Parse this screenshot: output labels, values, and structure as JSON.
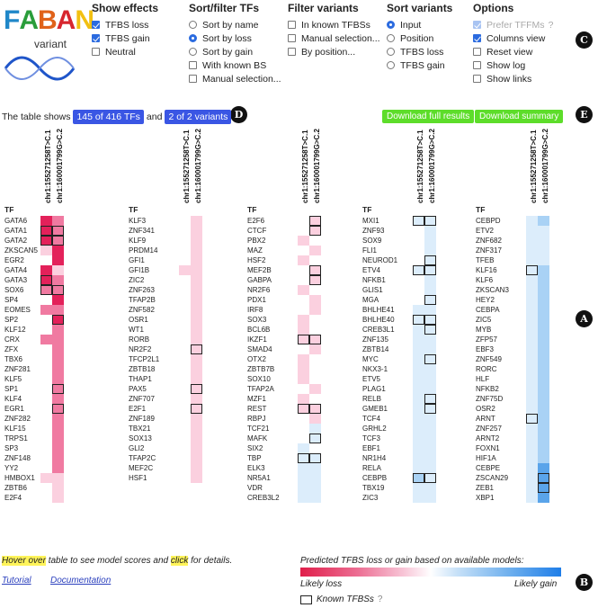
{
  "logo": {
    "letters": [
      {
        "ch": "F",
        "color": "#1f87c8"
      },
      {
        "ch": "A",
        "color": "#2a9d3a"
      },
      {
        "ch": "B",
        "color": "#e0621a"
      },
      {
        "ch": "A",
        "color": "#d7262e"
      },
      {
        "ch": "N",
        "color": "#f2c011"
      }
    ],
    "subtitle": "variant",
    "wave_color": "#1f55c9"
  },
  "options": {
    "show_effects": {
      "header": "Show effects",
      "items": [
        {
          "label": "TFBS loss",
          "checked": true
        },
        {
          "label": "TFBS gain",
          "checked": true
        },
        {
          "label": "Neutral",
          "checked": false
        }
      ]
    },
    "sort_filter": {
      "header": "Sort/filter TFs",
      "radios": [
        {
          "label": "Sort by name",
          "selected": false
        },
        {
          "label": "Sort by loss",
          "selected": true
        },
        {
          "label": "Sort by gain",
          "selected": false
        }
      ],
      "checks": [
        {
          "label": "With known BS",
          "checked": false
        },
        {
          "label": "Manual selection...",
          "checked": false
        }
      ]
    },
    "filter_variants": {
      "header": "Filter variants",
      "items": [
        {
          "label": "In known TFBSs",
          "checked": false
        },
        {
          "label": "Manual selection...",
          "checked": false
        },
        {
          "label": "By position...",
          "checked": false
        }
      ]
    },
    "sort_variants": {
      "header": "Sort variants",
      "items": [
        {
          "label": "Input",
          "selected": true
        },
        {
          "label": "Position",
          "selected": false
        },
        {
          "label": "TFBS loss",
          "selected": false
        },
        {
          "label": "TFBS gain",
          "selected": false
        }
      ]
    },
    "options": {
      "header": "Options",
      "items": [
        {
          "label": "Prefer TFFMs",
          "checked": true,
          "disabled": true,
          "help": "?"
        },
        {
          "label": "Columns view",
          "checked": true,
          "disabled": false
        },
        {
          "label": "Reset view",
          "checked": false,
          "disabled": false
        },
        {
          "label": "Show log",
          "checked": false,
          "disabled": false
        },
        {
          "label": "Show links",
          "checked": false,
          "disabled": false
        }
      ]
    }
  },
  "badges": {
    "a": "A",
    "b": "B",
    "c": "C",
    "d": "D",
    "e": "E"
  },
  "summary": {
    "prefix": "The table shows",
    "tf_count": "145 of 416 TFs",
    "conj": "and",
    "variant_count": "2 of 2 variants"
  },
  "downloads": {
    "full": "Download full results",
    "summary": "Download summary"
  },
  "tf_header": "TF",
  "variant_labels": [
    "chr1:155271258T>C.1",
    "chr1:160001799G>C.2"
  ],
  "tables": [
    {
      "kind": "loss",
      "rows": [
        [
          "GATA6",
          3,
          2,
          0,
          0
        ],
        [
          "GATA1",
          3,
          2,
          1,
          1
        ],
        [
          "GATA2",
          3,
          2,
          1,
          1
        ],
        [
          "ZKSCAN5",
          1,
          3,
          0,
          0
        ],
        [
          "EGR2",
          0,
          3,
          0,
          0
        ],
        [
          "GATA4",
          3,
          1,
          0,
          0
        ],
        [
          "GATA3",
          3,
          2,
          1,
          0
        ],
        [
          "SOX6",
          2,
          2,
          1,
          1
        ],
        [
          "SP4",
          0,
          3,
          0,
          0
        ],
        [
          "EOMES",
          2,
          2,
          0,
          0
        ],
        [
          "SP2",
          0,
          3,
          0,
          1
        ],
        [
          "KLF12",
          0,
          2,
          0,
          0
        ],
        [
          "CRX",
          2,
          2,
          0,
          0
        ],
        [
          "ZFX",
          0,
          2,
          0,
          0
        ],
        [
          "TBX6",
          0,
          2,
          0,
          0
        ],
        [
          "ZNF281",
          0,
          2,
          0,
          0
        ],
        [
          "KLF5",
          0,
          2,
          0,
          0
        ],
        [
          "SP1",
          0,
          2,
          0,
          1
        ],
        [
          "KLF4",
          0,
          2,
          0,
          0
        ],
        [
          "EGR1",
          0,
          2,
          0,
          1
        ],
        [
          "ZNF282",
          0,
          2,
          0,
          0
        ],
        [
          "KLF15",
          0,
          2,
          0,
          0
        ],
        [
          "TRPS1",
          0,
          2,
          0,
          0
        ],
        [
          "SP3",
          0,
          2,
          0,
          0
        ],
        [
          "ZNF148",
          0,
          2,
          0,
          0
        ],
        [
          "YY2",
          0,
          2,
          0,
          0
        ],
        [
          "HMBOX1",
          1,
          1,
          0,
          0
        ],
        [
          "ZBTB6",
          0,
          1,
          0,
          0
        ],
        [
          "E2F4",
          0,
          1,
          0,
          0
        ]
      ]
    },
    {
      "kind": "loss",
      "rows": [
        [
          "KLF3",
          0,
          1,
          0,
          0
        ],
        [
          "ZNF341",
          0,
          1,
          0,
          0
        ],
        [
          "KLF9",
          0,
          1,
          0,
          0
        ],
        [
          "PRDM14",
          0,
          1,
          0,
          0
        ],
        [
          "GFI1",
          0,
          1,
          0,
          0
        ],
        [
          "GFI1B",
          1,
          1,
          0,
          0
        ],
        [
          "ZIC2",
          0,
          1,
          0,
          0
        ],
        [
          "ZNF263",
          0,
          1,
          0,
          0
        ],
        [
          "TFAP2B",
          0,
          1,
          0,
          0
        ],
        [
          "ZNF582",
          0,
          1,
          0,
          0
        ],
        [
          "OSR1",
          0,
          1,
          0,
          0
        ],
        [
          "WT1",
          0,
          1,
          0,
          0
        ],
        [
          "RORB",
          0,
          1,
          0,
          0
        ],
        [
          "NR2F2",
          0,
          1,
          0,
          1
        ],
        [
          "TFCP2L1",
          0,
          1,
          0,
          0
        ],
        [
          "ZBTB18",
          0,
          1,
          0,
          0
        ],
        [
          "THAP1",
          0,
          1,
          0,
          0
        ],
        [
          "PAX5",
          0,
          1,
          0,
          1
        ],
        [
          "ZNF707",
          0,
          1,
          0,
          0
        ],
        [
          "E2F1",
          0,
          1,
          0,
          1
        ],
        [
          "ZNF189",
          0,
          1,
          0,
          0
        ],
        [
          "TBX21",
          0,
          1,
          0,
          0
        ],
        [
          "SOX13",
          0,
          1,
          0,
          0
        ],
        [
          "GLI2",
          0,
          1,
          0,
          0
        ],
        [
          "TFAP2C",
          0,
          1,
          0,
          0
        ],
        [
          "MEF2C",
          0,
          1,
          0,
          0
        ],
        [
          "HSF1",
          0,
          1,
          0,
          0
        ]
      ]
    },
    {
      "kind": "loss",
      "rows": [
        [
          "E2F6",
          0,
          1,
          0,
          1
        ],
        [
          "CTCF",
          0,
          1,
          0,
          1
        ],
        [
          "PBX2",
          1,
          0,
          0,
          0
        ],
        [
          "MAZ",
          0,
          1,
          0,
          0
        ],
        [
          "HSF2",
          1,
          0,
          0,
          0
        ],
        [
          "MEF2B",
          0,
          1,
          0,
          1
        ],
        [
          "GABPA",
          0,
          1,
          0,
          1
        ],
        [
          "NR2F6",
          1,
          0,
          0,
          0
        ],
        [
          "PDX1",
          0,
          1,
          0,
          0
        ],
        [
          "IRF8",
          0,
          1,
          0,
          0
        ],
        [
          "SOX3",
          1,
          0,
          0,
          0
        ],
        [
          "BCL6B",
          1,
          0,
          0,
          0
        ],
        [
          "IKZF1",
          1,
          1,
          1,
          1
        ],
        [
          "SMAD4",
          0,
          1,
          0,
          0
        ],
        [
          "OTX2",
          1,
          0,
          0,
          0
        ],
        [
          "ZBTB7B",
          1,
          0,
          0,
          0
        ],
        [
          "SOX10",
          1,
          0,
          0,
          0
        ],
        [
          "TFAP2A",
          0,
          1,
          0,
          0
        ],
        [
          "MZF1",
          1,
          0,
          0,
          0
        ],
        [
          "REST",
          1,
          1,
          1,
          1
        ],
        [
          "RBPJ",
          0,
          1,
          0,
          0
        ],
        [
          "TCF21",
          0,
          -1,
          0,
          0
        ],
        [
          "MAFK",
          0,
          -1,
          0,
          1
        ],
        [
          "SIX2",
          -1,
          0,
          0,
          0
        ],
        [
          "TBP",
          -1,
          -1,
          1,
          1
        ],
        [
          "ELK3",
          -1,
          -1,
          0,
          0
        ],
        [
          "NR5A1",
          -1,
          -1,
          0,
          0
        ],
        [
          "VDR",
          -1,
          -1,
          0,
          0
        ],
        [
          "CREB3L2",
          -1,
          -1,
          0,
          0
        ]
      ]
    },
    {
      "kind": "gain",
      "rows": [
        [
          "MXI1",
          -1,
          -1,
          1,
          1
        ],
        [
          "ZNF93",
          0,
          -1,
          0,
          0
        ],
        [
          "SOX9",
          0,
          -1,
          0,
          0
        ],
        [
          "FLI1",
          0,
          -1,
          0,
          0
        ],
        [
          "NEUROD1",
          0,
          -1,
          0,
          1
        ],
        [
          "ETV4",
          -1,
          -1,
          1,
          1
        ],
        [
          "NFKB1",
          0,
          -1,
          0,
          0
        ],
        [
          "GLIS1",
          0,
          -1,
          0,
          0
        ],
        [
          "MGA",
          0,
          -1,
          0,
          1
        ],
        [
          "BHLHE41",
          -1,
          -1,
          0,
          0
        ],
        [
          "BHLHE40",
          -1,
          -1,
          1,
          1
        ],
        [
          "CREB3L1",
          -1,
          -1,
          0,
          1
        ],
        [
          "ZNF135",
          -1,
          -1,
          0,
          0
        ],
        [
          "ZBTB14",
          -1,
          -1,
          0,
          0
        ],
        [
          "MYC",
          -1,
          -1,
          0,
          1
        ],
        [
          "NKX3-1",
          -1,
          -1,
          0,
          0
        ],
        [
          "ETV5",
          -1,
          -1,
          0,
          0
        ],
        [
          "PLAG1",
          -1,
          -1,
          0,
          0
        ],
        [
          "RELB",
          -1,
          -1,
          0,
          1
        ],
        [
          "GMEB1",
          -1,
          -1,
          0,
          1
        ],
        [
          "TCF4",
          -1,
          -1,
          0,
          0
        ],
        [
          "GRHL2",
          -1,
          -1,
          0,
          0
        ],
        [
          "TCF3",
          -1,
          -1,
          0,
          0
        ],
        [
          "EBF1",
          -1,
          -1,
          0,
          0
        ],
        [
          "NR1H4",
          -1,
          -1,
          0,
          0
        ],
        [
          "RELA",
          -1,
          -1,
          0,
          0
        ],
        [
          "CEBPB",
          -2,
          -1,
          1,
          1
        ],
        [
          "TBX19",
          -1,
          -1,
          0,
          0
        ],
        [
          "ZIC3",
          -1,
          -1,
          0,
          0
        ]
      ]
    },
    {
      "kind": "gain",
      "rows": [
        [
          "CEBPD",
          -1,
          -2,
          0,
          0
        ],
        [
          "ETV2",
          -1,
          -1,
          0,
          0
        ],
        [
          "ZNF682",
          -1,
          -1,
          0,
          0
        ],
        [
          "ZNF317",
          -1,
          -1,
          0,
          0
        ],
        [
          "TFEB",
          -1,
          -1,
          0,
          0
        ],
        [
          "KLF16",
          -1,
          -2,
          1,
          0
        ],
        [
          "KLF6",
          -1,
          -2,
          0,
          0
        ],
        [
          "ZKSCAN3",
          -1,
          -2,
          0,
          0
        ],
        [
          "HEY2",
          -1,
          -2,
          0,
          0
        ],
        [
          "CEBPA",
          -1,
          -2,
          0,
          0
        ],
        [
          "ZIC5",
          -1,
          -2,
          0,
          0
        ],
        [
          "MYB",
          -1,
          -2,
          0,
          0
        ],
        [
          "ZFP57",
          -1,
          -2,
          0,
          0
        ],
        [
          "EBF3",
          -1,
          -2,
          0,
          0
        ],
        [
          "ZNF549",
          -1,
          -2,
          0,
          0
        ],
        [
          "RORC",
          -1,
          -2,
          0,
          0
        ],
        [
          "HLF",
          -1,
          -2,
          0,
          0
        ],
        [
          "NFKB2",
          -1,
          -2,
          0,
          0
        ],
        [
          "ZNF75D",
          -1,
          -2,
          0,
          0
        ],
        [
          "OSR2",
          -1,
          -2,
          0,
          0
        ],
        [
          "ARNT",
          -1,
          -2,
          1,
          0
        ],
        [
          "ZNF257",
          -1,
          -2,
          0,
          0
        ],
        [
          "ARNT2",
          -1,
          -2,
          0,
          0
        ],
        [
          "FOXN1",
          -1,
          -2,
          0,
          0
        ],
        [
          "HIF1A",
          -1,
          -2,
          0,
          0
        ],
        [
          "CEBPE",
          -1,
          -3,
          0,
          0
        ],
        [
          "ZSCAN29",
          -1,
          -3,
          0,
          1
        ],
        [
          "ZEB1",
          -1,
          -3,
          0,
          1
        ],
        [
          "XBP1",
          -1,
          -3,
          0,
          0
        ]
      ]
    }
  ],
  "colors": {
    "loss": [
      "#ffffff",
      "#fbd0df",
      "#f07aa1",
      "#e3215a"
    ],
    "gain": [
      "#ffffff",
      "#dcedfb",
      "#a9d2f5",
      "#5aa4ea"
    ],
    "accent": "#3a56e4",
    "download": "#5ddd2a"
  },
  "footer": {
    "hover": "Hover over",
    "hint_mid": "table to see model scores and",
    "click": "click",
    "hint_end": "for details.",
    "tutorial": "Tutorial",
    "documentation": "Documentation",
    "legend_title": "Predicted TFBS loss or gain based on available models:",
    "likely_loss": "Likely loss",
    "likely_gain": "Likely gain",
    "known": "Known TFBSs",
    "known_help": "?"
  }
}
